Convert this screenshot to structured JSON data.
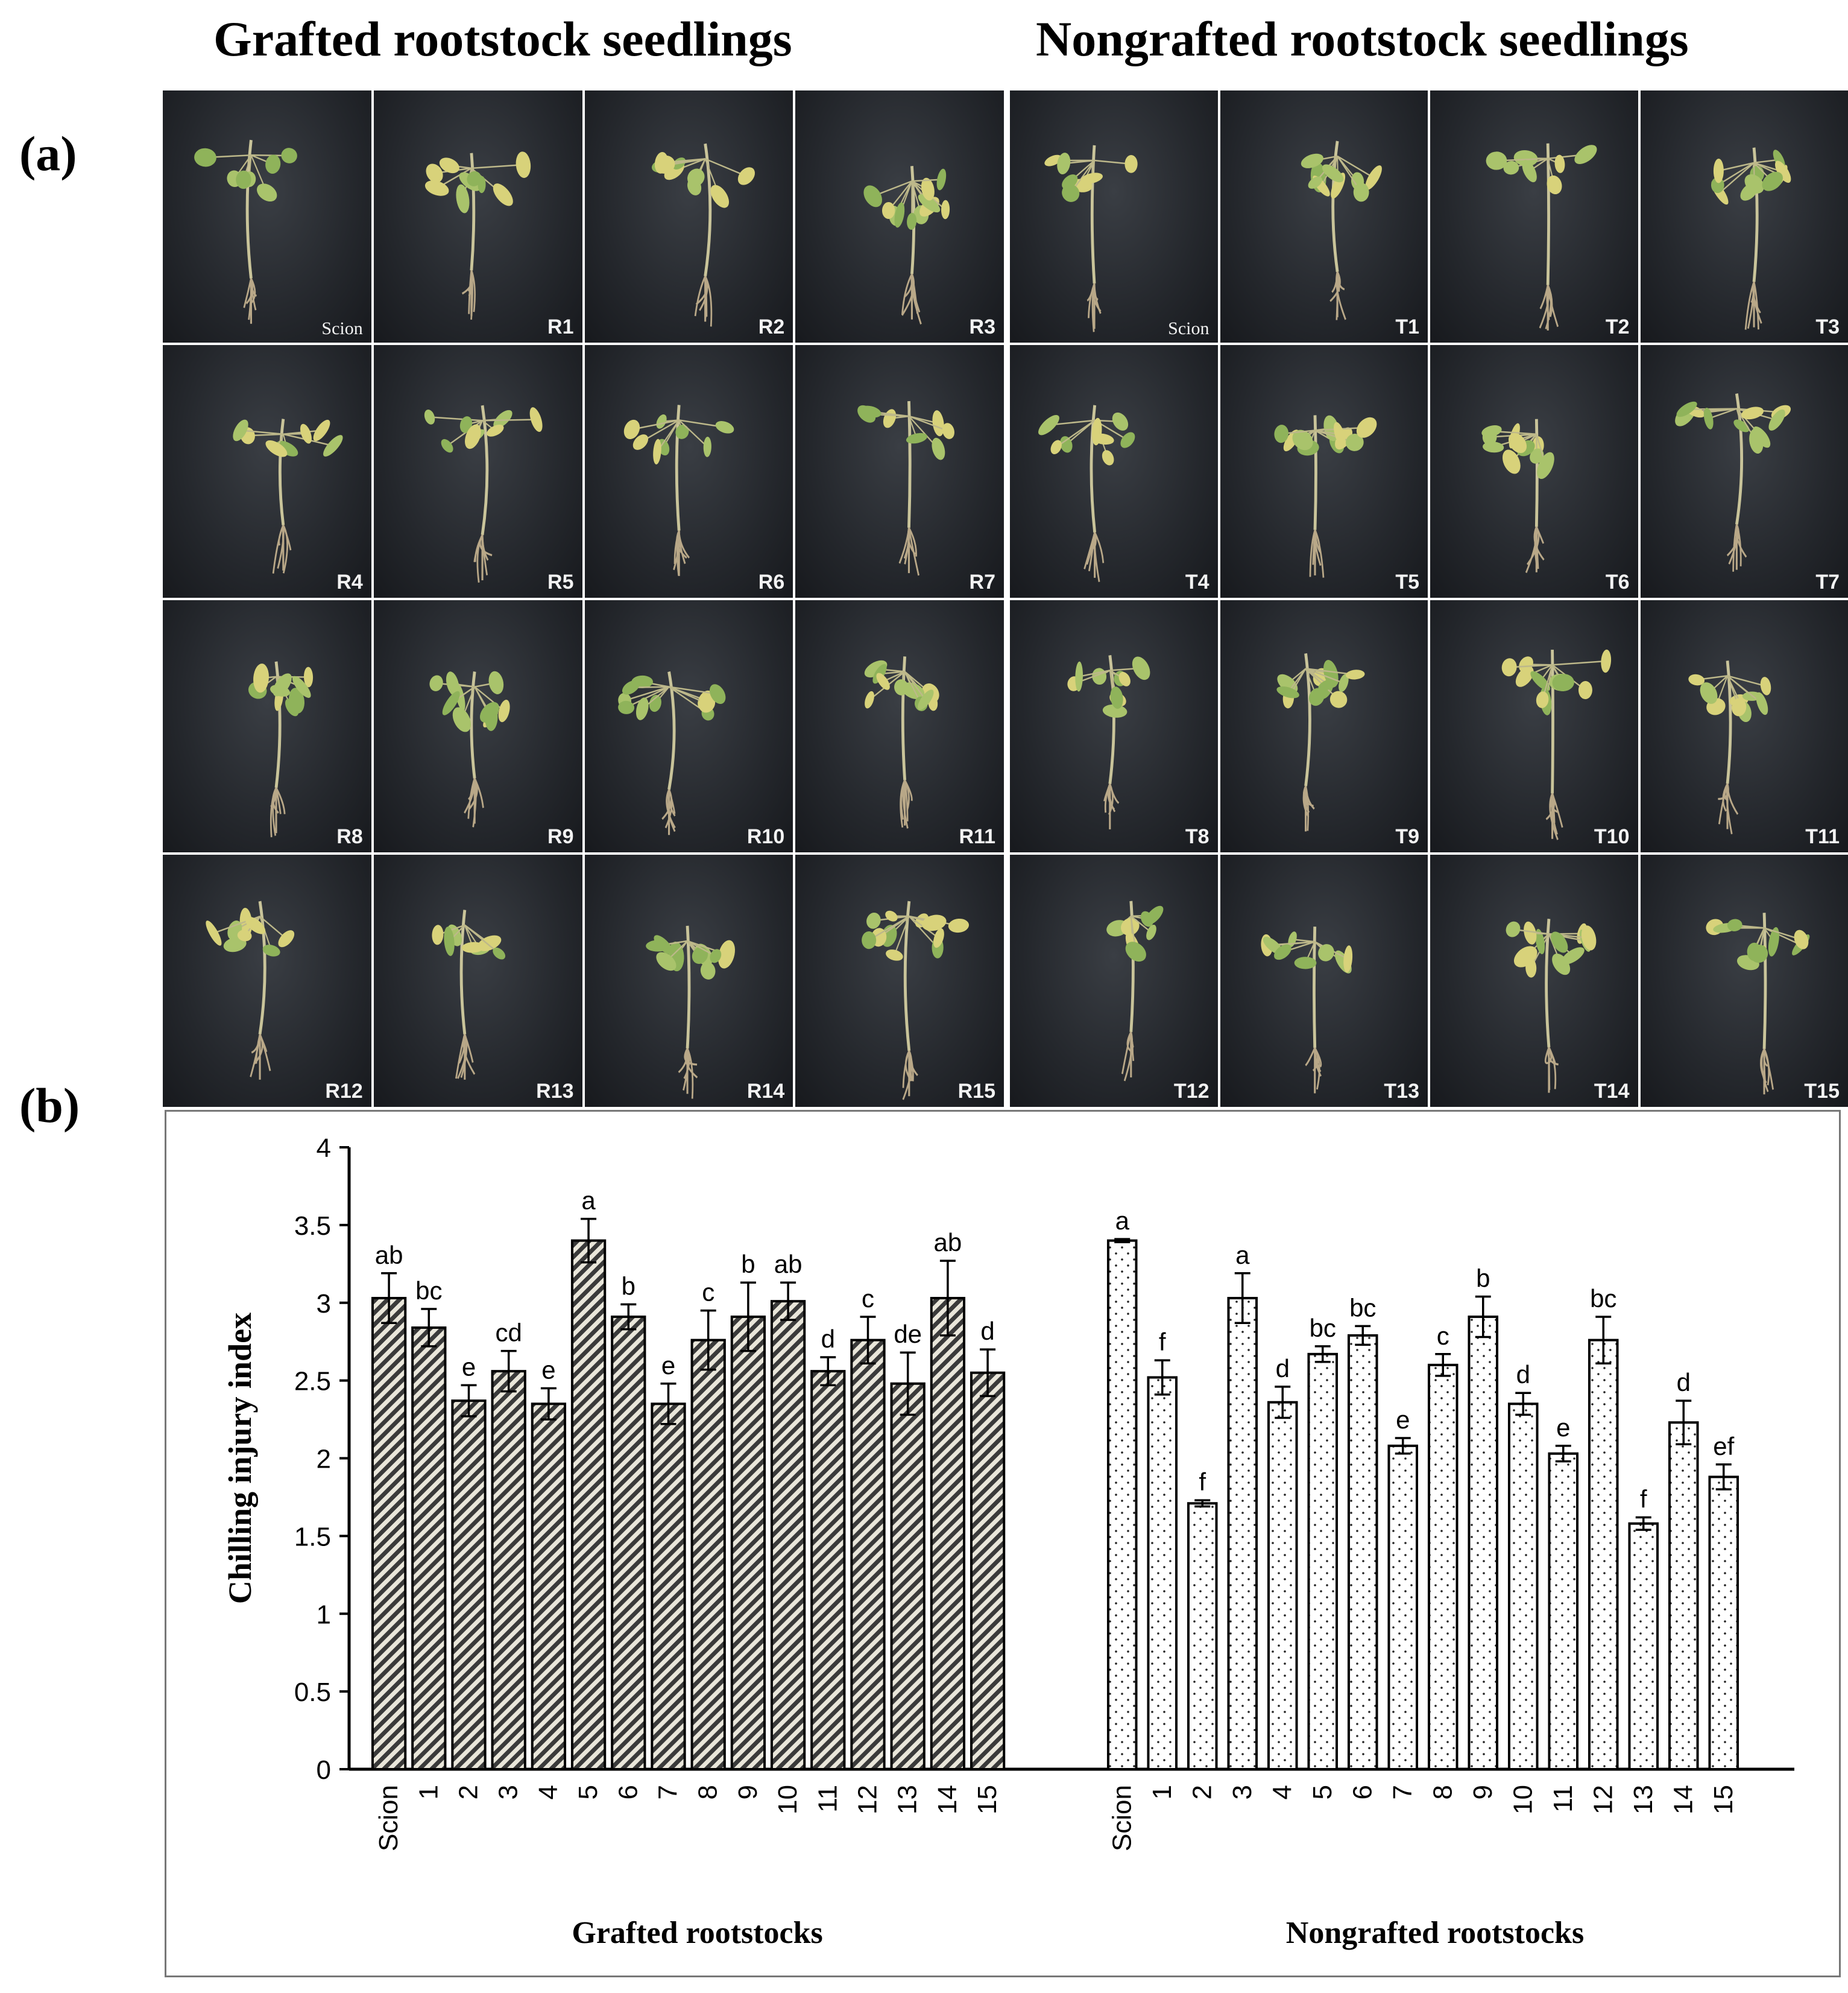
{
  "headers": {
    "left": "Grafted rootstock seedlings",
    "right": "Nongrafted rootstock seedlings"
  },
  "panel_labels": {
    "a": "(a)",
    "b": "(b)"
  },
  "photos": {
    "grafted": [
      "Scion",
      "R1",
      "R2",
      "R3",
      "R4",
      "R5",
      "R6",
      "R7",
      "R8",
      "R9",
      "R10",
      "R11",
      "R12",
      "R13",
      "R14",
      "R15"
    ],
    "nongrafted": [
      "Scion",
      "T1",
      "T2",
      "T3",
      "T4",
      "T5",
      "T6",
      "T7",
      "T8",
      "T9",
      "T10",
      "T11",
      "T12",
      "T13",
      "T14",
      "T15"
    ]
  },
  "chart_data": {
    "type": "bar",
    "ylabel": "Chilling injury index",
    "ylim": [
      0,
      4
    ],
    "yticks": [
      "0",
      "0.5",
      "1",
      "1.5",
      "2",
      "2.5",
      "3",
      "3.5",
      "4"
    ],
    "groups": [
      {
        "name": "Grafted rootstocks",
        "pattern": "diagonal-hatch",
        "categories": [
          "Scion",
          "1",
          "2",
          "3",
          "4",
          "5",
          "6",
          "7",
          "8",
          "9",
          "10",
          "11",
          "12",
          "13",
          "14",
          "15"
        ],
        "values": [
          3.03,
          2.84,
          2.37,
          2.56,
          2.35,
          3.4,
          2.91,
          2.35,
          2.76,
          2.91,
          3.01,
          2.56,
          2.76,
          2.48,
          3.03,
          2.55
        ],
        "errors": [
          0.16,
          0.12,
          0.1,
          0.13,
          0.1,
          0.14,
          0.08,
          0.13,
          0.19,
          0.22,
          0.12,
          0.09,
          0.15,
          0.2,
          0.24,
          0.15
        ],
        "letters": [
          "ab",
          "bc",
          "e",
          "cd",
          "e",
          "a",
          "b",
          "e",
          "c",
          "b",
          "ab",
          "d",
          "c",
          "de",
          "ab",
          "d"
        ]
      },
      {
        "name": "Nongrafted rootstocks",
        "pattern": "dots",
        "categories": [
          "Scion",
          "1",
          "2",
          "3",
          "4",
          "5",
          "6",
          "7",
          "8",
          "9",
          "10",
          "11",
          "12",
          "13",
          "14",
          "15"
        ],
        "values": [
          3.4,
          2.52,
          1.71,
          3.03,
          2.36,
          2.67,
          2.79,
          2.08,
          2.6,
          2.91,
          2.35,
          2.03,
          2.76,
          1.58,
          2.23,
          1.88
        ],
        "errors": [
          0.01,
          0.11,
          0.02,
          0.16,
          0.1,
          0.05,
          0.06,
          0.05,
          0.07,
          0.13,
          0.07,
          0.05,
          0.15,
          0.04,
          0.14,
          0.08
        ],
        "letters": [
          "a",
          "f",
          "f",
          "a",
          "d",
          "bc",
          "bc",
          "e",
          "c",
          "b",
          "d",
          "e",
          "bc",
          "f",
          "d",
          "ef"
        ]
      }
    ]
  }
}
